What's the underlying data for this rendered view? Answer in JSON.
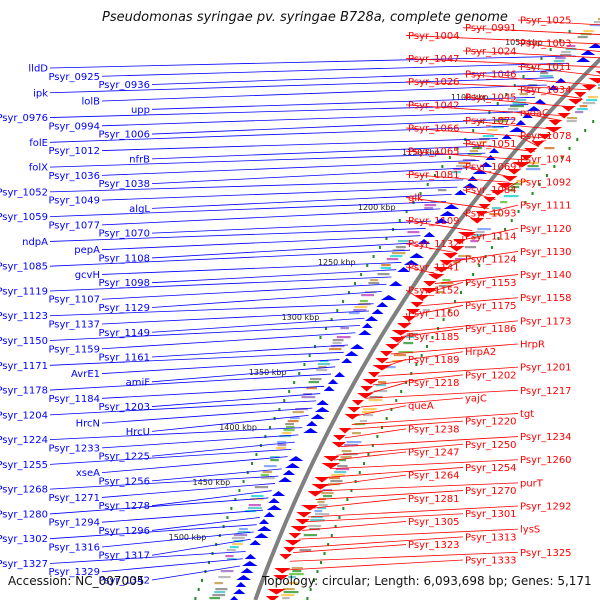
{
  "title": "Pseudomonas syringae pv. syringae B728a, complete genome",
  "footer": {
    "accession_label": "Accession:",
    "accession": "NC_007005",
    "topology_label": "Topology: circular; Length:",
    "length": "6,093,698 bp;",
    "genes_label": "Genes:",
    "genes": "5,171"
  },
  "colors": {
    "forward": "#ff0000",
    "reverse": "#0000ff",
    "backbone": "#808080",
    "tick": "#228b22"
  },
  "kbp_ticks": [
    "1050 kbp",
    "1100 kbp",
    "1150 kbp",
    "1200 kbp",
    "1250 kbp",
    "1300 kbp",
    "1350 kbp",
    "1400 kbp",
    "1450 kbp",
    "1500 kbp"
  ],
  "left_labels": [
    "lldD",
    "Psyr_0925",
    "Psyr_0936",
    "ipk",
    "lolB",
    "upp",
    "Psyr_0976",
    "Psyr_0994",
    "Psyr_1006",
    "folE",
    "Psyr_1012",
    "nfrB",
    "folX",
    "Psyr_1036",
    "Psyr_1038",
    "Psyr_1052",
    "Psyr_1049",
    "algL",
    "Psyr_1059",
    "Psyr_1077",
    "Psyr_1070",
    "ndpA",
    "pepA",
    "Psyr_1108",
    "Psyr_1085",
    "gcvH",
    "Psyr_1098",
    "Psyr_1119",
    "Psyr_1107",
    "Psyr_1129",
    "Psyr_1123",
    "Psyr_1137",
    "Psyr_1149",
    "Psyr_1150",
    "Psyr_1159",
    "Psyr_1161",
    "Psyr_1171",
    "AvrE1",
    "amiF",
    "Psyr_1178",
    "Psyr_1184",
    "Psyr_1203",
    "Psyr_1204",
    "HrcN",
    "HrcU",
    "Psyr_1224",
    "Psyr_1233",
    "Psyr_1225",
    "Psyr_1255",
    "xseA",
    "Psyr_1256",
    "Psyr_1268",
    "Psyr_1271",
    "Psyr_1278",
    "Psyr_1280",
    "Psyr_1294",
    "Psyr_1296",
    "Psyr_1302",
    "Psyr_1316",
    "Psyr_1317",
    "Psyr_1327",
    "Psyr_1329",
    "Psyr_1342"
  ],
  "right_labels": [
    "Psyr_1025",
    "Psyr_0991",
    "Psyr_1004",
    "Psyr_1003",
    "Psyr_1024",
    "Psyr_1047",
    "Psyr_1011",
    "Psyr_1046",
    "Psyr_1026",
    "Psyr_1034",
    "Psyr_1045",
    "Psyr_1042",
    "moaC",
    "Psyr_1072",
    "Psyr_1066",
    "Psyr_1078",
    "Psyr_1051",
    "Psyr_1065",
    "Psyr_1074",
    "Psyr_1069",
    "Psyr_1081",
    "Psyr_1092",
    "Psyr_1084",
    "glk",
    "Psyr_1111",
    "Psyr_1093",
    "Psyr_1109",
    "Psyr_1120",
    "Psyr_1114",
    "Psyr_1132",
    "Psyr_1130",
    "Psyr_1124",
    "Psyr_1141",
    "Psyr_1140",
    "Psyr_1153",
    "Psyr_1152",
    "Psyr_1158",
    "Psyr_1175",
    "Psyr_1160",
    "Psyr_1173",
    "Psyr_1186",
    "Psyr_1185",
    "HrpR",
    "HrpA2",
    "Psyr_1189",
    "Psyr_1201",
    "Psyr_1202",
    "Psyr_1218",
    "Psyr_1217",
    "yajC",
    "queA",
    "tgt",
    "Psyr_1220",
    "Psyr_1238",
    "Psyr_1234",
    "Psyr_1250",
    "Psyr_1247",
    "Psyr_1260",
    "Psyr_1254",
    "Psyr_1264",
    "purT",
    "Psyr_1270",
    "Psyr_1281",
    "Psyr_1292",
    "Psyr_1301",
    "Psyr_1305",
    "lysS",
    "Psyr_1313",
    "Psyr_1323",
    "Psyr_1325",
    "Psyr_1333"
  ]
}
